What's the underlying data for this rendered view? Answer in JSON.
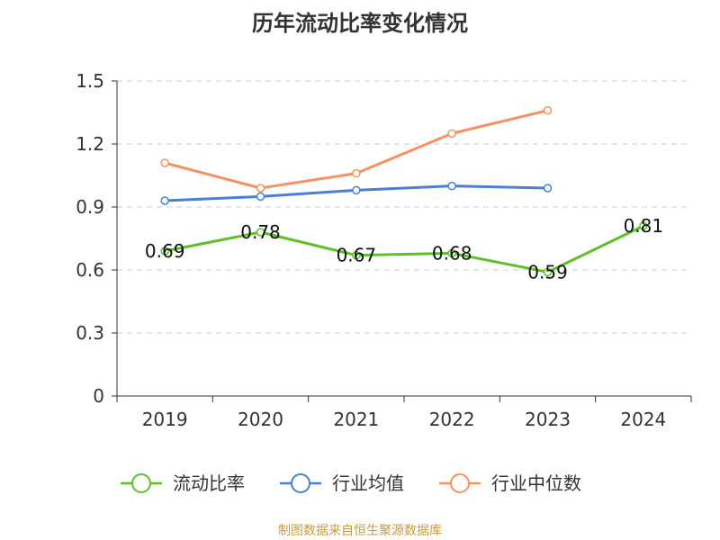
{
  "chart_data": {
    "type": "line",
    "title": "历年流动比率变化情况",
    "categories": [
      "2019",
      "2020",
      "2021",
      "2022",
      "2023",
      "2024"
    ],
    "ylim": [
      0,
      1.5
    ],
    "yticks": [
      "0",
      "0.3",
      "0.6",
      "0.9",
      "1.2",
      "1.5"
    ],
    "ytick_values": [
      0,
      0.3,
      0.6,
      0.9,
      1.2,
      1.5
    ],
    "grid": true,
    "legend_position": "bottom",
    "series": [
      {
        "name": "流动比率",
        "color": "#5fbf2a",
        "values": [
          0.69,
          0.78,
          0.67,
          0.68,
          0.59,
          0.81
        ],
        "labels": [
          "0.69",
          "0.78",
          "0.67",
          "0.68",
          "0.59",
          "0.81"
        ]
      },
      {
        "name": "行业均值",
        "color": "#4a7fd4",
        "values": [
          0.93,
          0.95,
          0.98,
          1.0,
          0.99,
          null
        ]
      },
      {
        "name": "行业中位数",
        "color": "#f59262",
        "values": [
          1.11,
          0.99,
          1.06,
          1.25,
          1.36,
          null
        ]
      }
    ]
  },
  "source": {
    "text": "制图数据来自恒生聚源数据库",
    "color": "#c89b3c"
  }
}
